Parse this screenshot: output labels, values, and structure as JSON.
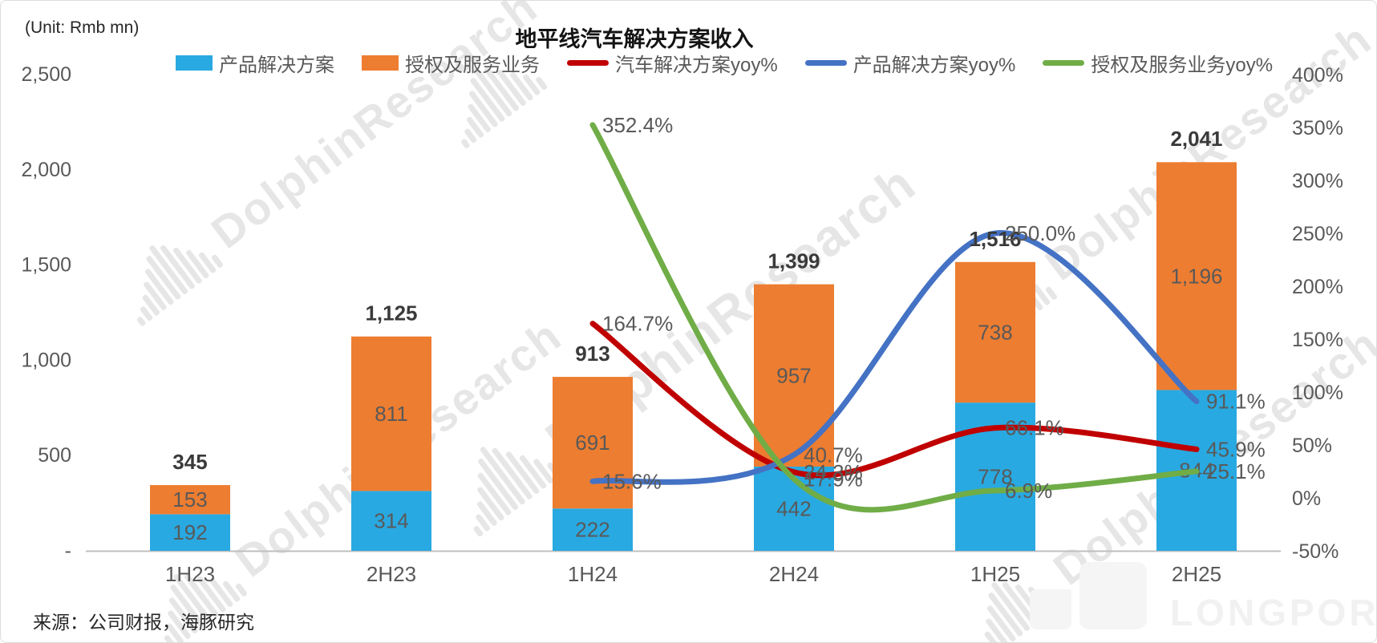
{
  "page": {
    "unit_label": "(Unit: Rmb mn)",
    "source_note": "来源：公司财报，海豚研究",
    "watermark_text": "DolphinResearch",
    "brand_text": "LONGPORT"
  },
  "legend": {
    "items": [
      {
        "label": "产品解决方案",
        "type": "bar",
        "color": "#29A9E1"
      },
      {
        "label": "授权及服务业务",
        "type": "bar",
        "color": "#ED7D31"
      },
      {
        "label": "汽车解决方案yoy%",
        "type": "line",
        "color": "#C00000"
      },
      {
        "label": "产品解决方案yoy%",
        "type": "line",
        "color": "#4472C4"
      },
      {
        "label": "授权及服务业务yoy%",
        "type": "line",
        "color": "#70AD47"
      }
    ]
  },
  "chart_data": {
    "type": "combo_bar_line",
    "title": "地平线汽车解决方案收入",
    "unit": "Rmb mn",
    "categories": [
      "1H23",
      "2H23",
      "1H24",
      "2H24",
      "1H25",
      "2H25"
    ],
    "bar_series": [
      {
        "name": "产品解决方案",
        "color": "#29A9E1",
        "stack": "revenue",
        "values": [
          192,
          314,
          222,
          442,
          778,
          844
        ],
        "labels": [
          "192",
          "314",
          "222",
          "442",
          "778",
          "844"
        ]
      },
      {
        "name": "授权及服务业务",
        "color": "#ED7D31",
        "stack": "revenue",
        "values": [
          153,
          811,
          691,
          957,
          738,
          1196
        ],
        "labels": [
          "153",
          "811",
          "691",
          "957",
          "738",
          "1,196"
        ]
      }
    ],
    "totals": [
      345,
      1125,
      913,
      1399,
      1516,
      2041
    ],
    "total_labels": [
      "345",
      "1,125",
      "913",
      "1,399",
      "1,516",
      "2,041"
    ],
    "line_series": [
      {
        "name": "汽车解决方案yoy%",
        "color": "#C00000",
        "axis": "right",
        "values": [
          null,
          null,
          164.7,
          24.3,
          66.1,
          45.9
        ],
        "labels": [
          null,
          null,
          "164.7%",
          "24.3%",
          "66.1%",
          "45.9%"
        ]
      },
      {
        "name": "产品解决方案yoy%",
        "color": "#4472C4",
        "axis": "right",
        "values": [
          null,
          null,
          15.6,
          40.7,
          250.0,
          91.1
        ],
        "labels": [
          null,
          null,
          "15.6%",
          "40.7%",
          "250.0%",
          "91.1%"
        ]
      },
      {
        "name": "授权及服务业务yoy%",
        "color": "#70AD47",
        "axis": "right",
        "values": [
          null,
          null,
          352.4,
          17.9,
          6.9,
          25.1
        ],
        "labels": [
          null,
          null,
          "352.4%",
          "17.9%",
          "6.9%",
          "25.1%"
        ]
      }
    ],
    "left_axis": {
      "range": [
        0,
        2500
      ],
      "tick_values": [
        0,
        500,
        1000,
        1500,
        2000,
        2500
      ],
      "tick_labels": [
        "-",
        "500",
        "1,000",
        "1,500",
        "2,000",
        "2,500"
      ]
    },
    "right_axis": {
      "range": [
        -50,
        400
      ],
      "tick_values": [
        -50,
        0,
        50,
        100,
        150,
        200,
        250,
        300,
        350,
        400
      ],
      "tick_labels": [
        "-50%",
        "0%",
        "50%",
        "100%",
        "150%",
        "200%",
        "250%",
        "300%",
        "350%",
        "400%"
      ]
    },
    "grid": false,
    "legend_position": "top",
    "axis_line_color": "#BFBFBF"
  }
}
